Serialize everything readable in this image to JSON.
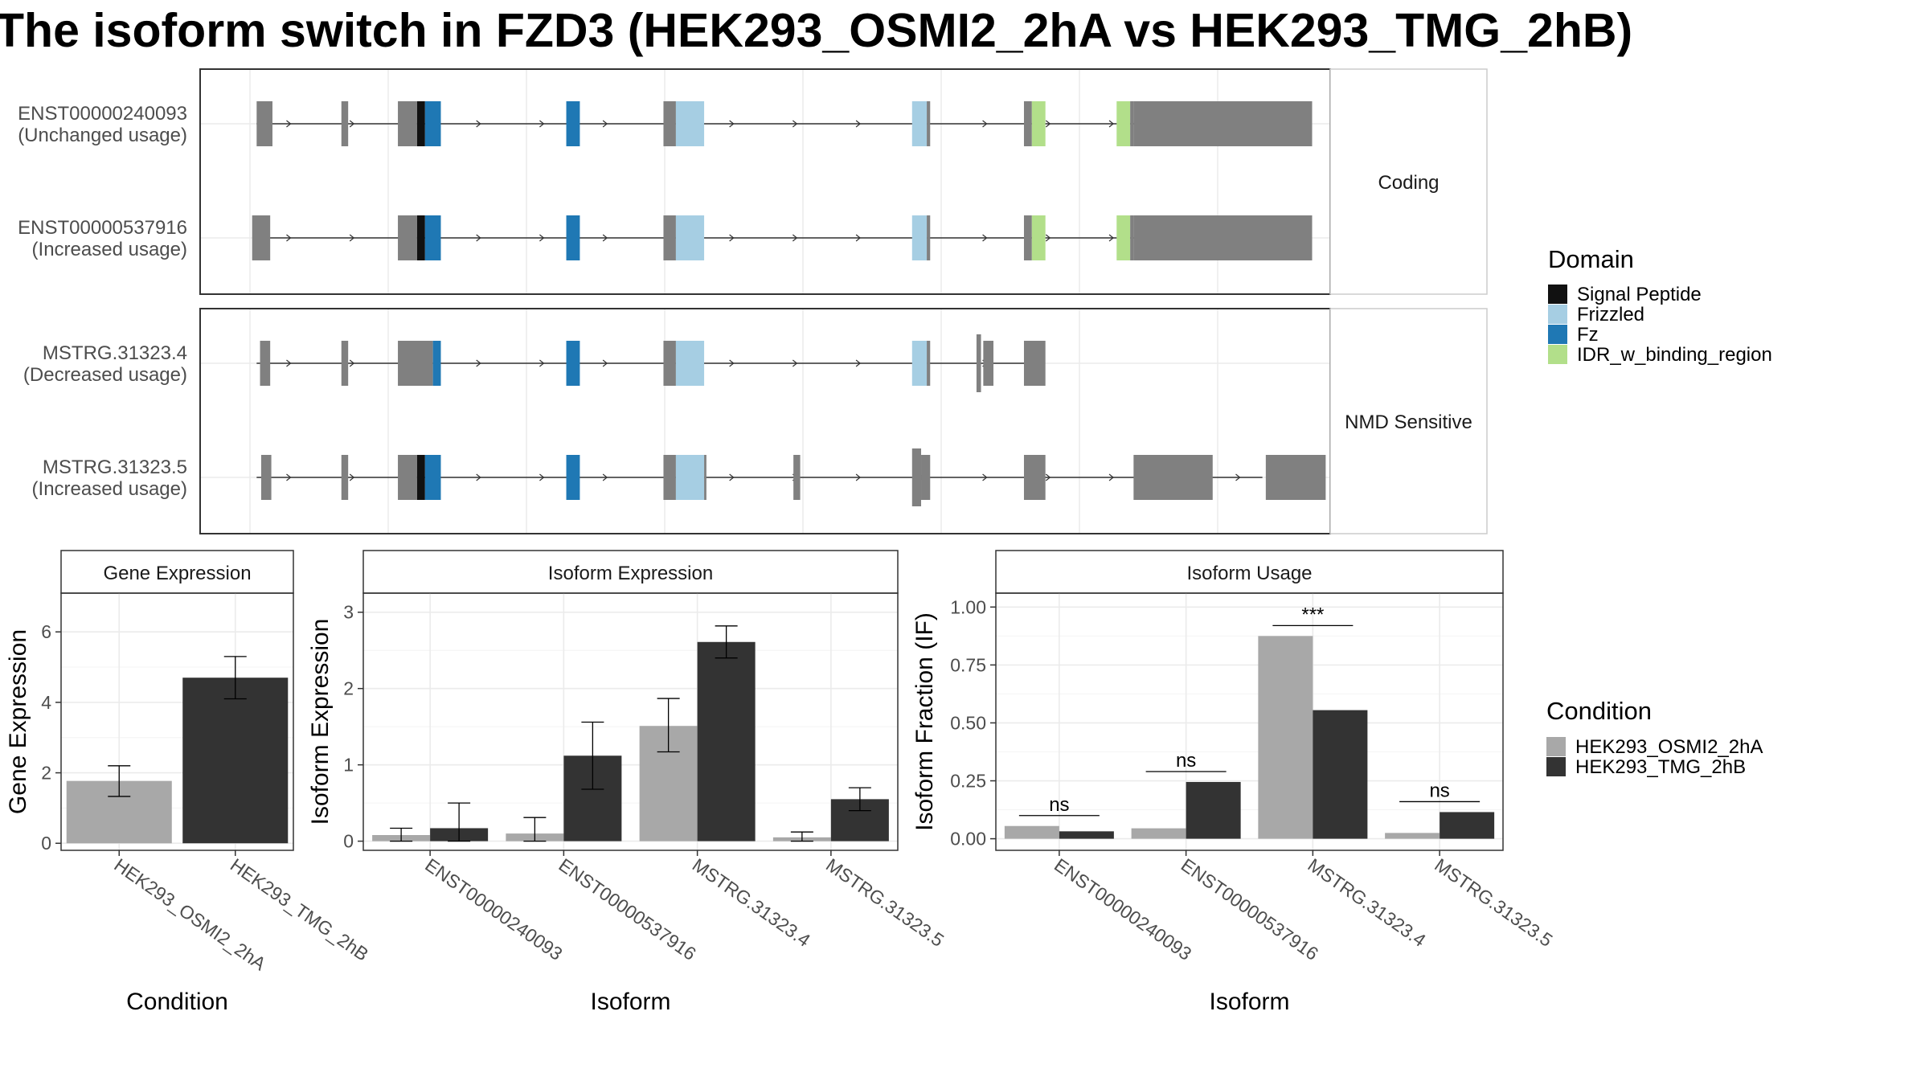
{
  "title": "The isoform switch in FZD3 (HEK293_OSMI2_2hA vs HEK293_TMG_2hB)",
  "colors": {
    "utr": "#808080",
    "signal_peptide": "#111111",
    "frizzled": "#a6cee3",
    "fz": "#1f78b4",
    "idr": "#b2df8a",
    "cond_a": "#a8a8a8",
    "cond_b": "#333333"
  },
  "structure": {
    "x_range": [
      0,
      100
    ],
    "panels": [
      {
        "strip": "Coding",
        "isoforms": [
          {
            "id": "ENST00000240093",
            "usage": "(Unchanged usage)",
            "line": [
              5,
              94
            ],
            "exons": [
              {
                "s": 5,
                "e": 6.4,
                "t": "utr"
              },
              {
                "s": 12.5,
                "e": 13.1,
                "t": "utr"
              },
              {
                "s": 17.5,
                "e": 19.2,
                "t": "utr"
              },
              {
                "s": 19.2,
                "e": 19.9,
                "t": "signal_peptide"
              },
              {
                "s": 19.9,
                "e": 21.3,
                "t": "fz"
              },
              {
                "s": 32.4,
                "e": 33.6,
                "t": "fz"
              },
              {
                "s": 41.0,
                "e": 42.1,
                "t": "utr"
              },
              {
                "s": 42.1,
                "e": 44.6,
                "t": "frizzled"
              },
              {
                "s": 63.0,
                "e": 64.3,
                "t": "frizzled"
              },
              {
                "s": 64.3,
                "e": 64.6,
                "t": "utr"
              },
              {
                "s": 72.9,
                "e": 73.6,
                "t": "utr"
              },
              {
                "s": 73.6,
                "e": 74.8,
                "t": "idr"
              },
              {
                "s": 81.1,
                "e": 82.3,
                "t": "idr"
              },
              {
                "s": 82.3,
                "e": 82.6,
                "t": "utr"
              },
              {
                "s": 82.6,
                "e": 98.4,
                "t": "utr_big"
              }
            ]
          },
          {
            "id": "ENST00000537916",
            "usage": "(Increased usage)",
            "line": [
              5,
              94
            ],
            "exons": [
              {
                "s": 4.6,
                "e": 6.2,
                "t": "utr"
              },
              {
                "s": 17.5,
                "e": 19.2,
                "t": "utr"
              },
              {
                "s": 19.2,
                "e": 19.9,
                "t": "signal_peptide"
              },
              {
                "s": 19.9,
                "e": 21.3,
                "t": "fz"
              },
              {
                "s": 32.4,
                "e": 33.6,
                "t": "fz"
              },
              {
                "s": 41.0,
                "e": 42.1,
                "t": "utr"
              },
              {
                "s": 42.1,
                "e": 44.6,
                "t": "frizzled"
              },
              {
                "s": 63.0,
                "e": 64.3,
                "t": "frizzled"
              },
              {
                "s": 64.3,
                "e": 64.6,
                "t": "utr"
              },
              {
                "s": 72.9,
                "e": 73.6,
                "t": "utr"
              },
              {
                "s": 73.6,
                "e": 74.8,
                "t": "idr"
              },
              {
                "s": 81.1,
                "e": 82.3,
                "t": "idr"
              },
              {
                "s": 82.3,
                "e": 82.6,
                "t": "utr"
              },
              {
                "s": 82.6,
                "e": 98.4,
                "t": "utr_big"
              }
            ]
          }
        ]
      },
      {
        "strip": "NMD Sensitive",
        "isoforms": [
          {
            "id": "MSTRG.31323.4",
            "usage": "(Decreased usage)",
            "line": [
              5,
              74
            ],
            "exons": [
              {
                "s": 5.3,
                "e": 6.2,
                "t": "utr"
              },
              {
                "s": 12.5,
                "e": 13.1,
                "t": "utr"
              },
              {
                "s": 17.5,
                "e": 20.6,
                "t": "utr"
              },
              {
                "s": 20.6,
                "e": 21.3,
                "t": "fz"
              },
              {
                "s": 32.4,
                "e": 33.6,
                "t": "fz"
              },
              {
                "s": 41.0,
                "e": 42.1,
                "t": "utr"
              },
              {
                "s": 42.1,
                "e": 44.6,
                "t": "frizzled"
              },
              {
                "s": 63.0,
                "e": 64.3,
                "t": "frizzled"
              },
              {
                "s": 64.3,
                "e": 64.6,
                "t": "utr"
              },
              {
                "s": 68.7,
                "e": 69.1,
                "t": "utr_stub"
              },
              {
                "s": 69.3,
                "e": 70.2,
                "t": "utr"
              },
              {
                "s": 72.9,
                "e": 74.8,
                "t": "utr"
              }
            ]
          },
          {
            "id": "MSTRG.31323.5",
            "usage": "(Increased usage)",
            "line": [
              5,
              94
            ],
            "exons": [
              {
                "s": 5.4,
                "e": 6.3,
                "t": "utr"
              },
              {
                "s": 12.5,
                "e": 13.1,
                "t": "utr"
              },
              {
                "s": 17.5,
                "e": 19.2,
                "t": "utr"
              },
              {
                "s": 19.2,
                "e": 19.9,
                "t": "signal_peptide"
              },
              {
                "s": 19.9,
                "e": 21.3,
                "t": "fz"
              },
              {
                "s": 32.4,
                "e": 33.6,
                "t": "fz"
              },
              {
                "s": 41.0,
                "e": 42.1,
                "t": "utr"
              },
              {
                "s": 42.1,
                "e": 44.6,
                "t": "frizzled"
              },
              {
                "s": 44.6,
                "e": 44.8,
                "t": "utr"
              },
              {
                "s": 52.5,
                "e": 53.1,
                "t": "utr"
              },
              {
                "s": 63.0,
                "e": 63.8,
                "t": "utr_tall"
              },
              {
                "s": 63.8,
                "e": 64.6,
                "t": "utr"
              },
              {
                "s": 72.9,
                "e": 74.8,
                "t": "utr"
              },
              {
                "s": 82.6,
                "e": 89.6,
                "t": "utr"
              },
              {
                "s": 94.3,
                "e": 99.6,
                "t": "utr"
              }
            ]
          }
        ]
      }
    ],
    "legend": {
      "title": "Domain",
      "items": [
        {
          "label": "Signal Peptide",
          "key": "signal_peptide"
        },
        {
          "label": "Frizzled",
          "key": "frizzled"
        },
        {
          "label": "Fz",
          "key": "fz"
        },
        {
          "label": "IDR_w_binding_region",
          "key": "idr"
        }
      ]
    }
  },
  "chart_data": [
    {
      "type": "bar",
      "strip": "Gene Expression",
      "xlabel": "Condition",
      "ylabel": "Gene Expression",
      "categories": [
        "HEK293_OSMI2_2hA",
        "HEK293_TMG_2hB"
      ],
      "values": [
        1.77,
        4.7
      ],
      "errors": [
        [
          1.33,
          2.2
        ],
        [
          4.1,
          5.3
        ]
      ],
      "ylim": [
        -0.2,
        7.1
      ],
      "yticks": [
        0,
        2,
        4,
        6
      ]
    },
    {
      "type": "bar",
      "strip": "Isoform Expression",
      "xlabel": "Isoform",
      "ylabel": "Isoform Expression",
      "categories": [
        "ENST00000240093",
        "ENST00000537916",
        "MSTRG.31323.4",
        "MSTRG.31323.5"
      ],
      "series": [
        {
          "name": "HEK293_OSMI2_2hA",
          "values": [
            0.08,
            0.1,
            1.51,
            0.05
          ],
          "errors": [
            [
              0.0,
              0.17
            ],
            [
              0.0,
              0.31
            ],
            [
              1.17,
              1.87
            ],
            [
              0.0,
              0.12
            ]
          ]
        },
        {
          "name": "HEK293_TMG_2hB",
          "values": [
            0.17,
            1.12,
            2.61,
            0.55
          ],
          "errors": [
            [
              0.0,
              0.5
            ],
            [
              0.68,
              1.56
            ],
            [
              2.4,
              2.82
            ],
            [
              0.4,
              0.7
            ]
          ]
        }
      ],
      "ylim": [
        -0.12,
        3.25
      ],
      "yticks": [
        0,
        1,
        2,
        3
      ]
    },
    {
      "type": "bar",
      "strip": "Isoform Usage",
      "xlabel": "Isoform",
      "ylabel": "Isoform Fraction (IF)",
      "categories": [
        "ENST00000240093",
        "ENST00000537916",
        "MSTRG.31323.4",
        "MSTRG.31323.5"
      ],
      "series": [
        {
          "name": "HEK293_OSMI2_2hA",
          "values": [
            0.055,
            0.045,
            0.875,
            0.025
          ]
        },
        {
          "name": "HEK293_TMG_2hB",
          "values": [
            0.032,
            0.245,
            0.555,
            0.115
          ]
        }
      ],
      "significance": [
        {
          "label": "ns",
          "y": 0.1
        },
        {
          "label": "ns",
          "y": 0.29
        },
        {
          "label": "***",
          "y": 0.92
        },
        {
          "label": "ns",
          "y": 0.16
        }
      ],
      "ylim": [
        -0.05,
        1.06
      ],
      "yticks": [
        0.0,
        0.25,
        0.5,
        0.75,
        1.0
      ],
      "ytick_labels": [
        "0.00",
        "0.25",
        "0.50",
        "0.75",
        "1.00"
      ]
    }
  ],
  "condition_legend": {
    "title": "Condition",
    "items": [
      {
        "label": "HEK293_OSMI2_2hA",
        "key": "cond_a"
      },
      {
        "label": "HEK293_TMG_2hB",
        "key": "cond_b"
      }
    ]
  }
}
